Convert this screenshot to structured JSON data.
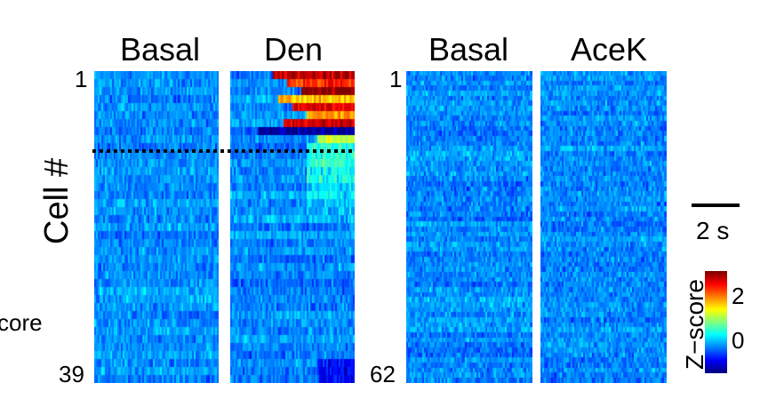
{
  "chart_data": {
    "type": "heatmap",
    "panels": [
      {
        "title": "Basal",
        "group": 0,
        "rows": 39,
        "activation": "none"
      },
      {
        "title": "Den",
        "group": 0,
        "rows": 39,
        "activation": "strong-top-cells",
        "responsive_cells": 9
      },
      {
        "title": "Basal",
        "group": 1,
        "rows": 62,
        "activation": "none"
      },
      {
        "title": "AceK",
        "group": 1,
        "rows": 62,
        "activation": "none"
      }
    ],
    "group_labels": {
      "left": {
        "first_row": "1",
        "last_row": "39"
      },
      "right": {
        "first_row": "1",
        "last_row": "62"
      }
    },
    "ylabel": "Cell #",
    "cut_text": "core",
    "divider": {
      "style": "dotted",
      "after_cell": 9,
      "group": 0
    },
    "colorbar": {
      "label": "Z−score",
      "range": [
        -1,
        2.8
      ],
      "ticks": [
        {
          "value": 2,
          "label": "2"
        },
        {
          "value": 0,
          "label": "0"
        }
      ],
      "colormap": "jet"
    },
    "scalebar": {
      "label": "2 s",
      "seconds": 2
    }
  }
}
